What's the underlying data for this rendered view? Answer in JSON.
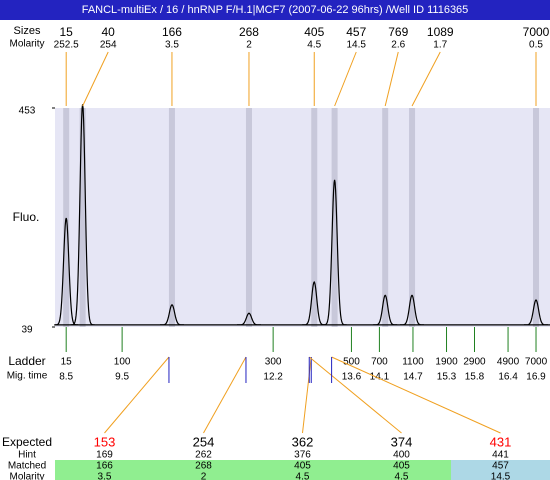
{
  "header": {
    "title": "FANCL-multiEx / 16 / hnRNP F/H.1|MCF7 (2007-06-22 96hrs) /Well ID 1116365"
  },
  "chart_data": {
    "type": "electropherogram",
    "y_label": "Fluo.",
    "ylim": [
      39,
      453
    ],
    "yticks": [
      453,
      39
    ],
    "xlim": [
      8.3,
      17.15
    ],
    "baseline": 43,
    "band_color": "#c8c8da",
    "plot_color": "#e6e6f5",
    "link_color": "#f0a020",
    "ladder_color": "#208020",
    "match_mark_color": "#2020c0",
    "peaks": {
      "label": "Sizes",
      "molarity_label": "Molarity",
      "sizes": [
        15,
        40,
        166,
        268,
        405,
        457,
        769,
        1089,
        7000
      ],
      "molarity": [
        252.5,
        254,
        3.5,
        2,
        4.5,
        14.5,
        2.6,
        1.7,
        0.5
      ],
      "heights": [
        245,
        460,
        81,
        65,
        124,
        317,
        99,
        99,
        90
      ]
    },
    "ladder": {
      "label": "Ladder",
      "time_label": "Mig. time",
      "sizes": [
        15,
        100,
        300,
        500,
        700,
        1100,
        1900,
        2900,
        4900,
        7000
      ],
      "times": [
        8.5,
        9.5,
        12.2,
        13.6,
        14.1,
        14.7,
        15.3,
        15.8,
        16.4,
        16.9
      ]
    },
    "expected": {
      "label": "Expected",
      "values": [
        153,
        254,
        362,
        374,
        431
      ],
      "colors": [
        "#ff0000",
        "#000000",
        "#000000",
        "#000000",
        "#ff0000"
      ]
    },
    "hint": {
      "label": "Hint",
      "values": [
        169,
        262,
        376,
        400,
        441
      ]
    },
    "matched": {
      "label": "Matched",
      "values": [
        166,
        268,
        405,
        405,
        457
      ],
      "colors": [
        "#90ee90",
        "#90ee90",
        "#90ee90",
        "#90ee90",
        "#add8e6"
      ]
    },
    "molarity": {
      "label": "Molarity",
      "values": [
        3.5,
        2,
        4.5,
        4.5,
        14.5
      ]
    }
  }
}
